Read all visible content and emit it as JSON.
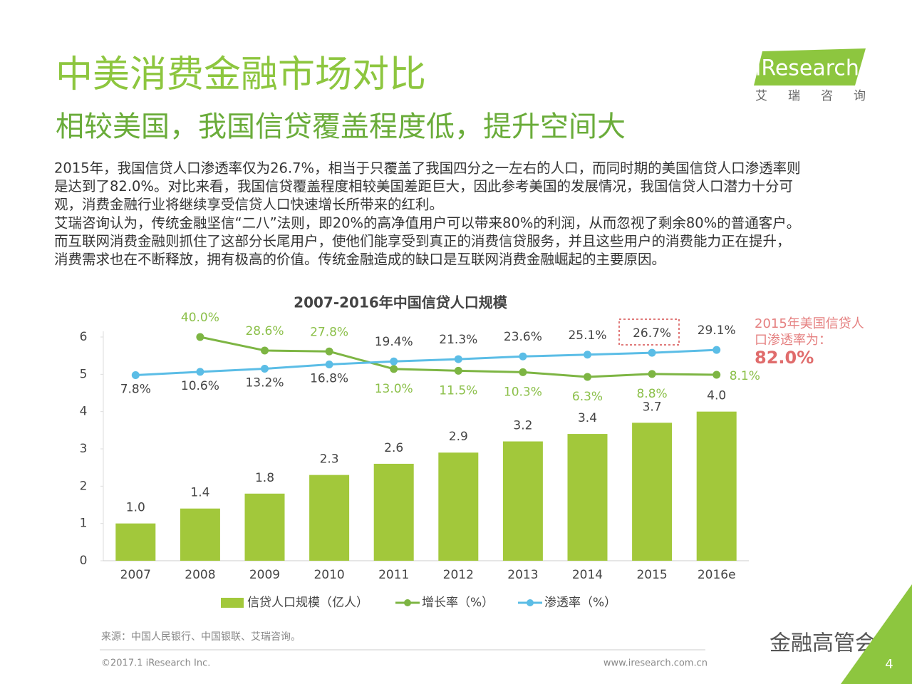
{
  "header": {
    "title": "中美消费金融市场对比",
    "subtitle": "相较美国，我国信贷覆盖程度低，提升空间大",
    "logo": "iResearch",
    "logo_sub": "艾 瑞 咨 询"
  },
  "body": {
    "lines": [
      "2015年，我国信贷人口渗透率仅为26.7%，相当于只覆盖了我国四分之一左右的人口，而同时期的美国信贷人口渗透率则",
      "是达到了82.0%。对比来看，我国信贷覆盖程度相较美国差距巨大，因此参考美国的发展情况，我国信贷人口潜力十分可",
      "观，消费金融行业将继续享受信贷人口快速增长所带来的红利。",
      "艾瑞咨询认为，传统金融坚信“二八”法则，即20%的高净值用户可以带来80%的利润，从而忽视了剩余80%的普通客户。",
      "而互联网消费金融则抓住了这部分长尾用户，使他们能享受到真正的消费信贷服务，并且这些用户的消费能力正在提升，",
      "消费需求也在不断释放，拥有极高的价值。传统金融造成的缺口是互联网消费金融崛起的主要原因。"
    ]
  },
  "chart_data": {
    "type": "bar_line",
    "title": "2007-2016年中国信贷人口规模",
    "categories": [
      "2007",
      "2008",
      "2009",
      "2010",
      "2011",
      "2012",
      "2013",
      "2014",
      "2015",
      "2016e"
    ],
    "ylim": [
      0,
      6
    ],
    "yticks": [
      0,
      1,
      2,
      3,
      4,
      5,
      6
    ],
    "y2lim": [
      -149,
      40
    ],
    "series": [
      {
        "name": "信贷人口规模（亿人）",
        "type": "bar",
        "color": "#a2c83b",
        "values": [
          1.0,
          1.4,
          1.8,
          2.3,
          2.6,
          2.9,
          3.2,
          3.4,
          3.7,
          4.0
        ],
        "value_labels": [
          "1.0",
          "1.4",
          "1.8",
          "2.3",
          "2.6",
          "2.9",
          "3.2",
          "3.4",
          "3.7",
          "4.0"
        ]
      },
      {
        "name": "增长率（%）",
        "type": "line",
        "axis": "y2",
        "color": "#7db543",
        "values": [
          null,
          40.0,
          28.6,
          27.8,
          13.0,
          11.5,
          10.3,
          6.3,
          8.8,
          8.1
        ],
        "value_labels": [
          null,
          "40.0%",
          "28.6%",
          "27.8%",
          "13.0%",
          "11.5%",
          "10.3%",
          "6.3%",
          "8.8%",
          "8.1%"
        ]
      },
      {
        "name": "渗透率（%）",
        "type": "line",
        "axis": "y2",
        "color": "#5bbde6",
        "values": [
          7.8,
          10.6,
          13.2,
          16.8,
          19.4,
          21.3,
          23.6,
          25.1,
          26.7,
          29.1
        ],
        "value_labels": [
          "7.8%",
          "10.6%",
          "13.2%",
          "16.8%",
          "19.4%",
          "21.3%",
          "23.6%",
          "25.1%",
          "26.7%",
          "29.1%"
        ]
      }
    ],
    "annotation": {
      "text_lines": [
        "2015年美国信贷人",
        "口渗透率为："
      ],
      "value": 82.0,
      "value_label": "82.0%"
    }
  },
  "footer": {
    "source": "来源：中国人民银行、中国银联、艾瑞咨询。",
    "copyright": "©2017.1 iResearch Inc.",
    "url": "www.iresearch.com.cn",
    "watermark": "金融高管会",
    "page": "4"
  }
}
